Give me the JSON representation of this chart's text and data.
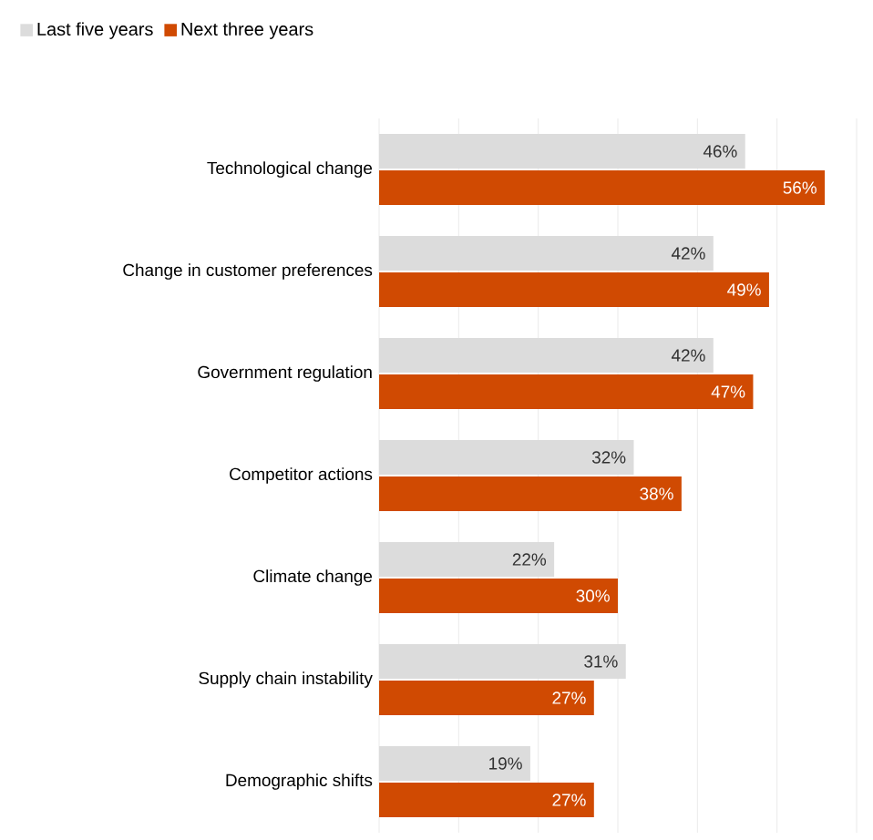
{
  "chart_data": {
    "type": "bar",
    "orientation": "horizontal",
    "categories": [
      "Technological change",
      "Change in customer preferences",
      "Government regulation",
      "Competitor actions",
      "Climate change",
      "Supply chain instability",
      "Demographic shifts"
    ],
    "series": [
      {
        "name": "Last five years",
        "color": "#dcdcdc",
        "values": [
          46,
          42,
          42,
          32,
          22,
          31,
          19
        ],
        "value_labels": [
          "46%",
          "42%",
          "42%",
          "32%",
          "22%",
          "31%",
          "19%"
        ]
      },
      {
        "name": "Next three years",
        "color": "#d04a02",
        "values": [
          56,
          49,
          47,
          38,
          30,
          27,
          27
        ],
        "value_labels": [
          "56%",
          "49%",
          "47%",
          "38%",
          "30%",
          "27%",
          "27%"
        ]
      }
    ],
    "xlim": [
      0,
      60
    ],
    "xticks": [
      {
        "value": 0,
        "label": null
      },
      {
        "value": 10,
        "label": null
      },
      {
        "value": 20,
        "label": null
      },
      {
        "value": 30,
        "label": null
      },
      {
        "value": 40,
        "label": null
      },
      {
        "value": 50,
        "label": null
      },
      {
        "value": 60,
        "label": null
      }
    ],
    "grid": "x",
    "legend": "top left",
    "tick_labels": "y"
  }
}
